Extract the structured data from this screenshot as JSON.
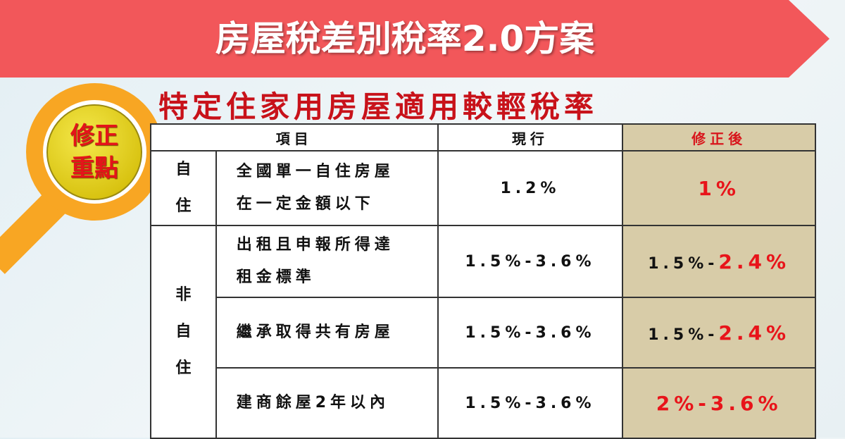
{
  "banner": {
    "title": "房屋稅差別稅率2.0方案"
  },
  "subtitle": "特定住家用房屋適用較輕稅率",
  "badge": {
    "line1": "修正",
    "line2": "重點"
  },
  "table": {
    "headers": [
      "項目",
      "現行",
      "修正後"
    ],
    "groups": {
      "self": "自住",
      "nonself": "非自住"
    },
    "rows": [
      {
        "item_line1": "全國單一自住房屋",
        "item_line2": "在一定金額以下",
        "current": "1.2%",
        "revised": "1%"
      },
      {
        "item_line1": "出租且申報所得達",
        "item_line2": "租金標準",
        "current": "1.5%-3.6%",
        "revised_prefix": "1.5%-",
        "revised_red": "2.4%"
      },
      {
        "item_line1": "繼承取得共有房屋",
        "current": "1.5%-3.6%",
        "revised_prefix": "1.5%-",
        "revised_red": "2.4%"
      },
      {
        "item_line1": "建商餘屋2年以內",
        "current": "1.5%-3.6%",
        "revised": "2%-3.6%"
      }
    ]
  },
  "colors": {
    "banner": "#f2575a",
    "accent_red": "#e8141a",
    "revised_bg": "#d8cca8",
    "magnifier": "#f8a623"
  }
}
